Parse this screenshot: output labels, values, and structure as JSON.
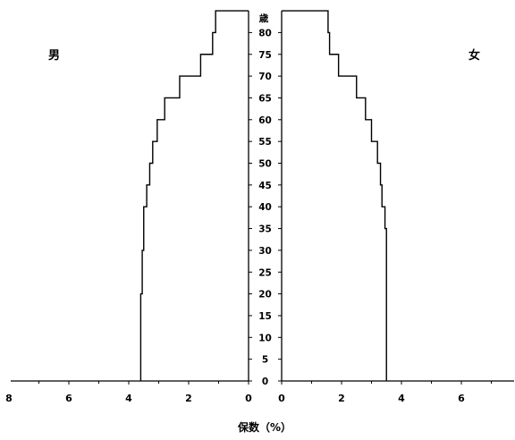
{
  "chart_data": {
    "type": "step-line",
    "axis_title": "保数（%）",
    "age_axis_unit": "歳",
    "age_ticks": [
      0,
      5,
      10,
      15,
      20,
      25,
      30,
      35,
      40,
      45,
      50,
      55,
      60,
      65,
      70,
      75,
      80
    ],
    "x_ticks_left": [
      8,
      6,
      4,
      2,
      0
    ],
    "x_ticks_right": [
      0,
      2,
      4,
      6
    ],
    "xlim": [
      0,
      7.8
    ],
    "ylim": [
      0,
      85
    ],
    "series": [
      {
        "name": "男",
        "side": "left",
        "points": [
          {
            "age": 0,
            "value": 3.6
          },
          {
            "age": 5,
            "value": 3.6
          },
          {
            "age": 10,
            "value": 3.6
          },
          {
            "age": 15,
            "value": 3.6
          },
          {
            "age": 20,
            "value": 3.55
          },
          {
            "age": 25,
            "value": 3.55
          },
          {
            "age": 30,
            "value": 3.5
          },
          {
            "age": 35,
            "value": 3.5
          },
          {
            "age": 40,
            "value": 3.4
          },
          {
            "age": 45,
            "value": 3.3
          },
          {
            "age": 50,
            "value": 3.2
          },
          {
            "age": 55,
            "value": 3.05
          },
          {
            "age": 60,
            "value": 2.8
          },
          {
            "age": 65,
            "value": 2.3
          },
          {
            "age": 70,
            "value": 1.6
          },
          {
            "age": 75,
            "value": 1.2
          },
          {
            "age": 80,
            "value": 1.1
          },
          {
            "age": 85,
            "value": 1.1
          }
        ]
      },
      {
        "name": "女",
        "side": "right",
        "points": [
          {
            "age": 0,
            "value": 3.5
          },
          {
            "age": 5,
            "value": 3.5
          },
          {
            "age": 10,
            "value": 3.5
          },
          {
            "age": 15,
            "value": 3.5
          },
          {
            "age": 20,
            "value": 3.5
          },
          {
            "age": 25,
            "value": 3.5
          },
          {
            "age": 30,
            "value": 3.5
          },
          {
            "age": 35,
            "value": 3.45
          },
          {
            "age": 40,
            "value": 3.35
          },
          {
            "age": 45,
            "value": 3.3
          },
          {
            "age": 50,
            "value": 3.2
          },
          {
            "age": 55,
            "value": 3.0
          },
          {
            "age": 60,
            "value": 2.8
          },
          {
            "age": 65,
            "value": 2.5
          },
          {
            "age": 70,
            "value": 1.9
          },
          {
            "age": 75,
            "value": 1.6
          },
          {
            "age": 80,
            "value": 1.55
          },
          {
            "age": 85,
            "value": 1.55
          }
        ]
      }
    ]
  }
}
